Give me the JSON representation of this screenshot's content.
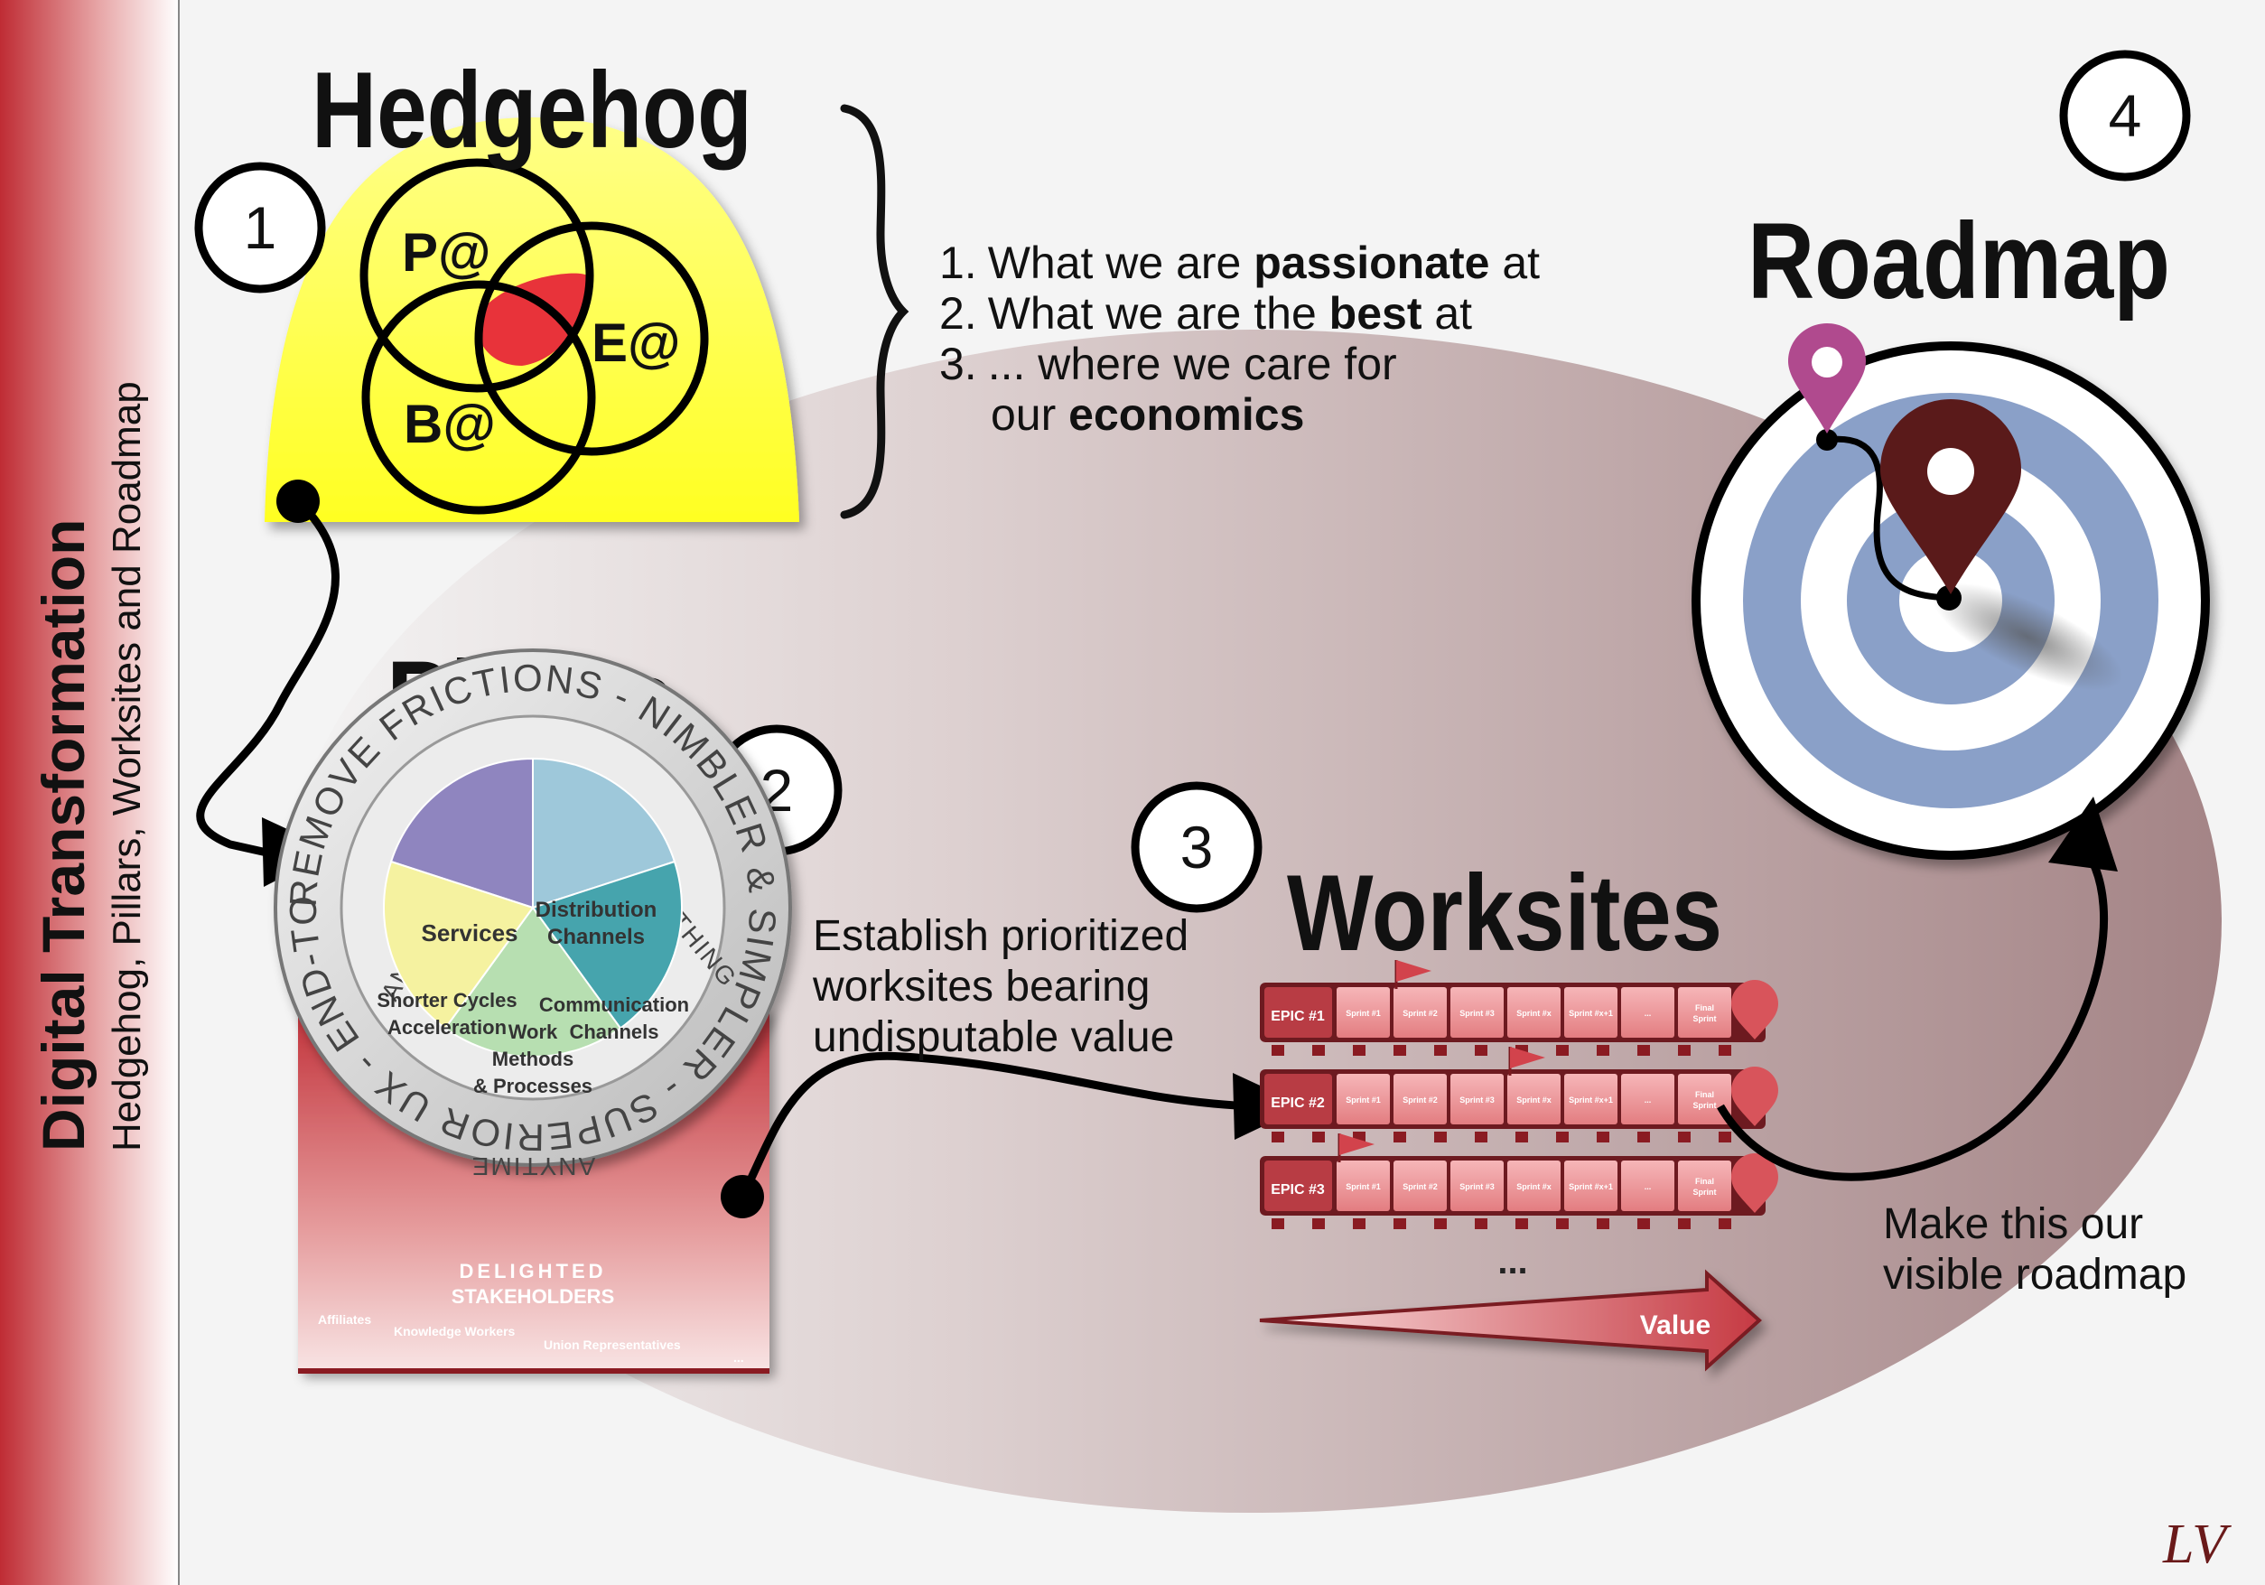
{
  "sidebar": {
    "title": "Digital Transformation",
    "subtitle": "Hedgehog, Pillars, Worksites and Roadmap"
  },
  "steps": [
    {
      "number": "1",
      "title": "Hedgehog"
    },
    {
      "number": "2",
      "title": "Pillars"
    },
    {
      "number": "3",
      "title": "Worksites"
    },
    {
      "number": "4",
      "title": "Roadmap"
    }
  ],
  "hedgehog": {
    "circles": [
      "P@",
      "E@",
      "B@"
    ],
    "criteria": [
      {
        "num": "1.",
        "pre": "What we are ",
        "bold": "passionate",
        "post": " at"
      },
      {
        "num": "2.",
        "pre": "What we are the ",
        "bold": "best",
        "post": " at"
      },
      {
        "num": "3.",
        "pre": "... where we care for",
        "bold": "",
        "post": ""
      },
      {
        "num": "",
        "pre": "our ",
        "bold": "economics",
        "post": ""
      }
    ]
  },
  "pillars": {
    "ring_text": "REMOVE FRICTIONS - NIMBLER & SIMPLER - SUPERIOR UX - END-TO-END -",
    "inner_words": [
      "ANYWHERE",
      "ANYTHING",
      "ANYTIME"
    ],
    "slices": [
      {
        "label": [
          "Services"
        ],
        "color": "#8f85bf"
      },
      {
        "label": [
          "Distribution",
          "Channels"
        ],
        "color": "#9ec8da"
      },
      {
        "label": [
          "Communication",
          "Channels"
        ],
        "color": "#46a4ad"
      },
      {
        "label": [
          "Work",
          "Methods",
          "& Processes"
        ],
        "color": "#b7dfb1"
      },
      {
        "label": [
          "Shorter Cycles",
          "Acceleration"
        ],
        "color": "#f5f2a0"
      }
    ],
    "base_title": [
      "DELIGHTED",
      "STAKEHOLDERS"
    ],
    "stakeholders": [
      "Affiliates",
      "Knowledge Workers",
      "Union Representatives",
      "..."
    ]
  },
  "worksites": {
    "caption": [
      "Establish prioritized",
      "worksites bearing",
      "undisputable value"
    ],
    "epics": [
      {
        "name": "EPIC #1",
        "flag_at": 1
      },
      {
        "name": "EPIC #2",
        "flag_at": 3
      },
      {
        "name": "EPIC #3",
        "flag_at": 0
      }
    ],
    "sprints": [
      "Sprint #1",
      "Sprint #2",
      "Sprint #3",
      "Sprint #x",
      "Sprint #x+1",
      "...",
      "Final Sprint"
    ],
    "more": "...",
    "value_label": "Value"
  },
  "roadmap": {
    "caption": [
      "Make this our",
      "visible roadmap"
    ]
  },
  "signature": "LV",
  "colors": {
    "sidebar": "#c0333a",
    "hedgehog": "#ffff33",
    "overlap": "#e8333a",
    "target": "#8aa0c8",
    "pin": "#5a1a1a",
    "pin_small": "#b04a8e",
    "epic": "#b83c44"
  }
}
